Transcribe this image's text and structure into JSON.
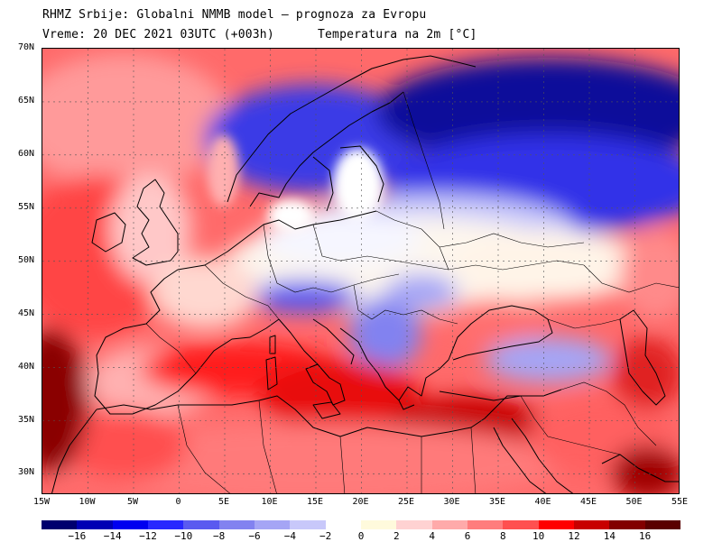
{
  "header": {
    "line1": "RHMZ Srbije: Globalni NMMB model — prognoza za Evropu",
    "line2": "Vreme: 20 DEC 2021 03UTC (+003h)",
    "line3": "Temperatura na 2m [°C]"
  },
  "map": {
    "projection": "lat-lon",
    "lon_range": [
      -15,
      55
    ],
    "lat_range": [
      28,
      70
    ],
    "grid": true,
    "lat_labels": [
      "70N",
      "65N",
      "60N",
      "55N",
      "50N",
      "45N",
      "40N",
      "35N",
      "30N"
    ],
    "lon_labels": [
      "15W",
      "10W",
      "5W",
      "0",
      "5E",
      "10E",
      "15E",
      "20E",
      "25E",
      "30E",
      "35E",
      "40E",
      "45E",
      "50E",
      "55E"
    ]
  },
  "colorbar": {
    "labels": [
      "−16",
      "−14",
      "−12",
      "−10",
      "−8",
      "−6",
      "−4",
      "−2",
      "0",
      "2",
      "4",
      "6",
      "8",
      "10",
      "12",
      "14",
      "16"
    ],
    "colors": [
      "#00006e",
      "#0000b4",
      "#0000f0",
      "#2828ff",
      "#5a5af0",
      "#8282f0",
      "#a5a5f5",
      "#c8c8fa",
      "#ffffff",
      "#fffadc",
      "#ffd2d2",
      "#ffaaaa",
      "#ff7d7d",
      "#ff5050",
      "#ff0000",
      "#c80000",
      "#820000",
      "#5a0000"
    ]
  }
}
